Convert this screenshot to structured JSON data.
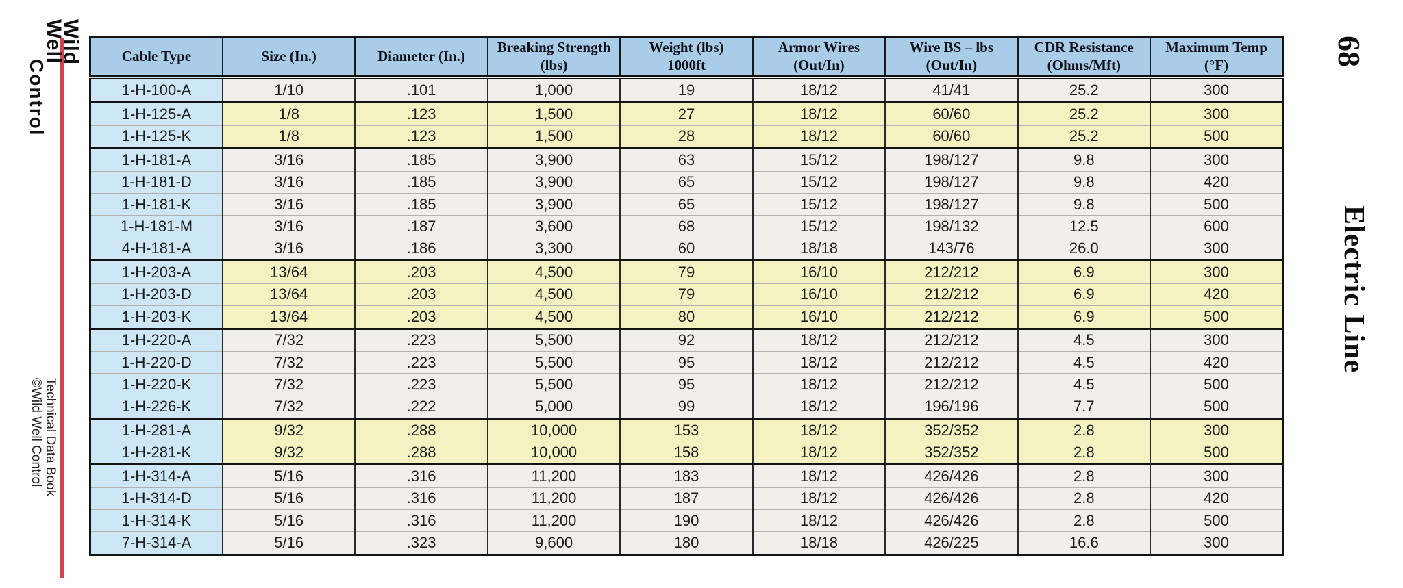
{
  "page": {
    "sidebar": {
      "logo": {
        "line1": "Wild",
        "line2": "Well",
        "line3": "Control"
      },
      "footer_line1": "Technical Data Book",
      "footer_line2": "©Wild Well Control"
    },
    "margin": {
      "page_number": "68",
      "section_title": "Electric Line"
    }
  },
  "colors": {
    "header_bg": "#a9cde8",
    "cable_col_bg": "#cde7f6",
    "yellow_row_bg": "#f5f2c2",
    "light_row_bg": "#f1efec",
    "accent_line": "#d9404f",
    "border_dark": "#141414",
    "text": "#1c1c1c"
  },
  "table": {
    "columns": [
      "Cable Type",
      "Size (In.)",
      "Diameter (In.)",
      "Breaking Strength\n(lbs)",
      "Weight (lbs)\n1000ft",
      "Armor Wires\n(Out/In)",
      "Wire BS – lbs\n(Out/In)",
      "CDR Resistance\n(Ohms/Mft)",
      "Maximum Temp\n(°F)"
    ],
    "rows": [
      {
        "tone": "light",
        "group_start": false,
        "cells": [
          "1-H-100-A",
          "1/10",
          ".101",
          "1,000",
          "19",
          "18/12",
          "41/41",
          "25.2",
          "300"
        ]
      },
      {
        "tone": "yellow",
        "group_start": true,
        "cells": [
          "1-H-125-A",
          "1/8",
          ".123",
          "1,500",
          "27",
          "18/12",
          "60/60",
          "25.2",
          "300"
        ]
      },
      {
        "tone": "yellow",
        "group_start": false,
        "cells": [
          "1-H-125-K",
          "1/8",
          ".123",
          "1,500",
          "28",
          "18/12",
          "60/60",
          "25.2",
          "500"
        ]
      },
      {
        "tone": "light",
        "group_start": true,
        "cells": [
          "1-H-181-A",
          "3/16",
          ".185",
          "3,900",
          "63",
          "15/12",
          "198/127",
          "9.8",
          "300"
        ]
      },
      {
        "tone": "light",
        "group_start": false,
        "cells": [
          "1-H-181-D",
          "3/16",
          ".185",
          "3,900",
          "65",
          "15/12",
          "198/127",
          "9.8",
          "420"
        ]
      },
      {
        "tone": "light",
        "group_start": false,
        "cells": [
          "1-H-181-K",
          "3/16",
          ".185",
          "3,900",
          "65",
          "15/12",
          "198/127",
          "9.8",
          "500"
        ]
      },
      {
        "tone": "light",
        "group_start": false,
        "cells": [
          "1-H-181-M",
          "3/16",
          ".187",
          "3,600",
          "68",
          "15/12",
          "198/132",
          "12.5",
          "600"
        ]
      },
      {
        "tone": "light",
        "group_start": false,
        "cells": [
          "4-H-181-A",
          "3/16",
          ".186",
          "3,300",
          "60",
          "18/18",
          "143/76",
          "26.0",
          "300"
        ]
      },
      {
        "tone": "yellow",
        "group_start": true,
        "cells": [
          "1-H-203-A",
          "13/64",
          ".203",
          "4,500",
          "79",
          "16/10",
          "212/212",
          "6.9",
          "300"
        ]
      },
      {
        "tone": "yellow",
        "group_start": false,
        "cells": [
          "1-H-203-D",
          "13/64",
          ".203",
          "4,500",
          "79",
          "16/10",
          "212/212",
          "6.9",
          "420"
        ]
      },
      {
        "tone": "yellow",
        "group_start": false,
        "cells": [
          "1-H-203-K",
          "13/64",
          ".203",
          "4,500",
          "80",
          "16/10",
          "212/212",
          "6.9",
          "500"
        ]
      },
      {
        "tone": "light",
        "group_start": true,
        "cells": [
          "1-H-220-A",
          "7/32",
          ".223",
          "5,500",
          "92",
          "18/12",
          "212/212",
          "4.5",
          "300"
        ]
      },
      {
        "tone": "light",
        "group_start": false,
        "cells": [
          "1-H-220-D",
          "7/32",
          ".223",
          "5,500",
          "95",
          "18/12",
          "212/212",
          "4.5",
          "420"
        ]
      },
      {
        "tone": "light",
        "group_start": false,
        "cells": [
          "1-H-220-K",
          "7/32",
          ".223",
          "5,500",
          "95",
          "18/12",
          "212/212",
          "4.5",
          "500"
        ]
      },
      {
        "tone": "light",
        "group_start": false,
        "cells": [
          "1-H-226-K",
          "7/32",
          ".222",
          "5,000",
          "99",
          "18/12",
          "196/196",
          "7.7",
          "500"
        ]
      },
      {
        "tone": "yellow",
        "group_start": true,
        "cells": [
          "1-H-281-A",
          "9/32",
          ".288",
          "10,000",
          "153",
          "18/12",
          "352/352",
          "2.8",
          "300"
        ]
      },
      {
        "tone": "yellow",
        "group_start": false,
        "cells": [
          "1-H-281-K",
          "9/32",
          ".288",
          "10,000",
          "158",
          "18/12",
          "352/352",
          "2.8",
          "500"
        ]
      },
      {
        "tone": "light",
        "group_start": true,
        "cells": [
          "1-H-314-A",
          "5/16",
          ".316",
          "11,200",
          "183",
          "18/12",
          "426/426",
          "2.8",
          "300"
        ]
      },
      {
        "tone": "light",
        "group_start": false,
        "cells": [
          "1-H-314-D",
          "5/16",
          ".316",
          "11,200",
          "187",
          "18/12",
          "426/426",
          "2.8",
          "420"
        ]
      },
      {
        "tone": "light",
        "group_start": false,
        "cells": [
          "1-H-314-K",
          "5/16",
          ".316",
          "11,200",
          "190",
          "18/12",
          "426/426",
          "2.8",
          "500"
        ]
      },
      {
        "tone": "light",
        "group_start": false,
        "cells": [
          "7-H-314-A",
          "5/16",
          ".323",
          "9,600",
          "180",
          "18/18",
          "426/225",
          "16.6",
          "300"
        ]
      }
    ]
  }
}
